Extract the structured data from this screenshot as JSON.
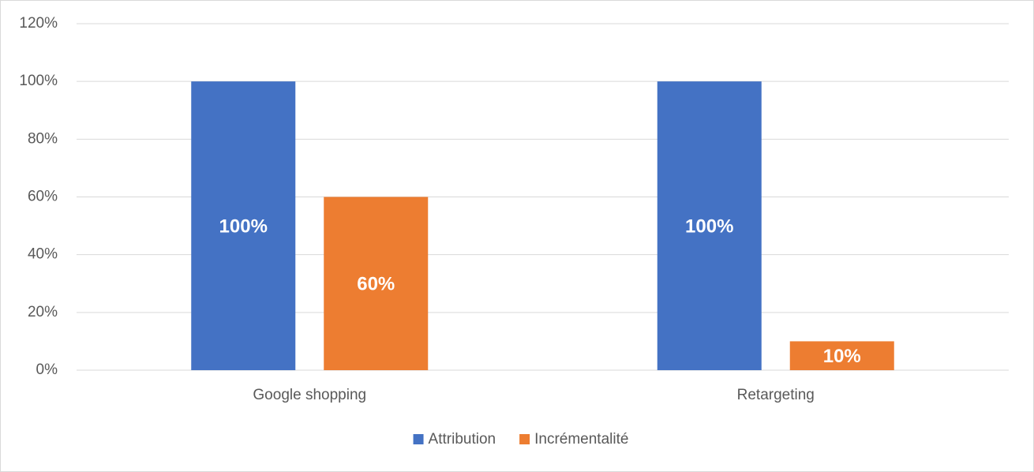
{
  "chart_data": {
    "type": "bar",
    "categories": [
      "Google shopping",
      "Retargeting"
    ],
    "series": [
      {
        "name": "Attribution",
        "color": "#4472c4",
        "values": [
          100,
          100
        ],
        "value_labels": [
          "100%",
          "100%"
        ]
      },
      {
        "name": "Incrémentalité",
        "color": "#ed7d31",
        "values": [
          60,
          10
        ],
        "value_labels": [
          "60%",
          "10%"
        ]
      }
    ],
    "ylim": [
      0,
      120
    ],
    "yticks": [
      {
        "value": 0,
        "label": "0%"
      },
      {
        "value": 20,
        "label": "20%"
      },
      {
        "value": 40,
        "label": "40%"
      },
      {
        "value": 60,
        "label": "60%"
      },
      {
        "value": 80,
        "label": "80%"
      },
      {
        "value": 100,
        "label": "100%"
      },
      {
        "value": 120,
        "label": "120%"
      }
    ],
    "grid": true,
    "legend": "bottom"
  }
}
